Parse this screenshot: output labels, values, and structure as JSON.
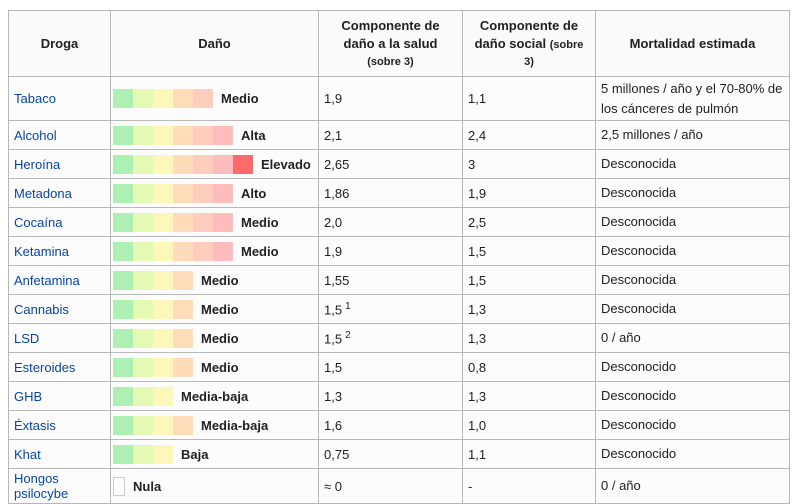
{
  "table": {
    "headers": {
      "drug": "Droga",
      "harm": "Daño",
      "health_main": "Componente de daño a la salud",
      "health_note": "(sobre 3)",
      "social_main": "Componente de daño social",
      "social_note": "(sobre 3)",
      "mortality": "Mortalidad estimada"
    },
    "palette": [
      "#aef0b2",
      "#e4fab4",
      "#fdf8b9",
      "#fedcba",
      "#fecdbd",
      "#ffbcbc",
      "#fc6a6a"
    ],
    "link_color": "#0645ad",
    "rows": [
      {
        "drug": "Tabaco",
        "segments": 5,
        "harm_label": "Medio",
        "health": "1,9",
        "health_sup": "",
        "social": "1,1",
        "mortality": "5 millones / año y el 70-80% de los cánceres de pulmón"
      },
      {
        "drug": "Alcohol",
        "segments": 6,
        "harm_label": "Alta",
        "health": "2,1",
        "health_sup": "",
        "social": "2,4",
        "mortality": "2,5 millones / año"
      },
      {
        "drug": "Heroína",
        "segments": 7,
        "harm_label": "Elevado",
        "health": "2,65",
        "health_sup": "",
        "social": "3",
        "mortality": "Desconocida"
      },
      {
        "drug": "Metadona",
        "segments": 6,
        "harm_label": "Alto",
        "health": "1,86",
        "health_sup": "",
        "social": "1,9",
        "mortality": "Desconocida"
      },
      {
        "drug": "Cocaína",
        "segments": 6,
        "harm_label": "Medio",
        "health": "2,0",
        "health_sup": "",
        "social": "2,5",
        "mortality": "Desconocida"
      },
      {
        "drug": "Ketamina",
        "segments": 6,
        "harm_label": "Medio",
        "health": "1,9",
        "health_sup": "",
        "social": "1,5",
        "mortality": "Desconocida"
      },
      {
        "drug": "Anfetamina",
        "segments": 4,
        "harm_label": "Medio",
        "health": "1,55",
        "health_sup": "",
        "social": "1,5",
        "mortality": "Desconocida"
      },
      {
        "drug": "Cannabis",
        "segments": 4,
        "harm_label": "Medio",
        "health": "1,5",
        "health_sup": "1",
        "social": "1,3",
        "mortality": "Desconocida"
      },
      {
        "drug": "LSD",
        "segments": 4,
        "harm_label": "Medio",
        "health": "1,5",
        "health_sup": "2",
        "social": "1,3",
        "mortality": "0 / año"
      },
      {
        "drug": "Esteroides",
        "segments": 4,
        "harm_label": "Medio",
        "health": "1,5",
        "health_sup": "",
        "social": "0,8",
        "mortality": "Desconocido"
      },
      {
        "drug": "GHB",
        "segments": 3,
        "harm_label": "Media-baja",
        "health": "1,3",
        "health_sup": "",
        "social": "1,3",
        "mortality": "Desconocido"
      },
      {
        "drug": "Éxtasis",
        "segments": 4,
        "harm_label": "Media-baja",
        "health": "1,6",
        "health_sup": "",
        "social": "1,0",
        "mortality": "Desconocido"
      },
      {
        "drug": "Khat",
        "segments": 3,
        "harm_label": "Baja",
        "health": "0,75",
        "health_sup": "",
        "social": "1,1",
        "mortality": "Desconocido"
      },
      {
        "drug": "Hongos psilocybe",
        "segments": 0,
        "harm_label": "Nula",
        "health": "≈ 0",
        "health_sup": "",
        "social": "-",
        "mortality": "0 / año"
      }
    ]
  }
}
